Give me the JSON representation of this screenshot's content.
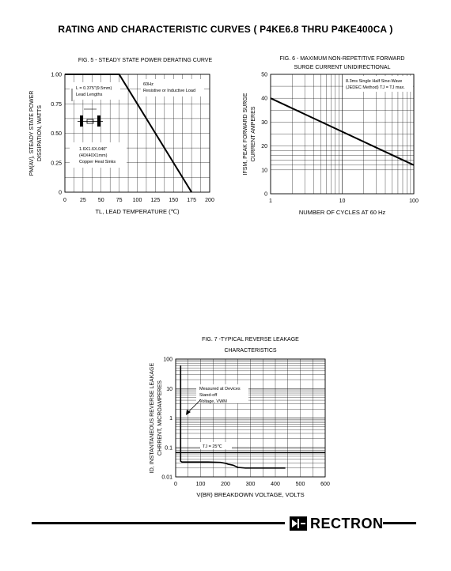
{
  "page_title": "RATING AND CHARACTERISTIC CURVES ( P4KE6.8 THRU P4KE400CA )",
  "logo_text": "RECTRON",
  "chart_data": [
    {
      "type": "line",
      "title": "FIG. 5 - STEADY STATE POWER DERATING CURVE",
      "xlabel": "TL, LEAD TEMPERATURE (℃)",
      "ylabel": [
        "PM(AV), STEADY STATE POWER",
        "DISSIPATION, WATTS"
      ],
      "xlim": [
        0,
        200
      ],
      "ylim": [
        0,
        1.0
      ],
      "x_ticks": [
        0,
        25,
        50,
        75,
        100,
        125,
        150,
        175,
        200
      ],
      "y_ticks": [
        0,
        0.25,
        0.5,
        0.75,
        1.0
      ],
      "y_tick_labels": [
        "0",
        "0.25",
        "0.50",
        "0.75",
        "1.00"
      ],
      "grid": true,
      "series": [
        {
          "x": [
            0,
            75,
            175
          ],
          "y": [
            1.0,
            1.0,
            0
          ]
        }
      ],
      "annotations": [
        [
          "L = 0.375\"(9.5mm)",
          "Lead Lengths"
        ],
        [
          "60Hz",
          "Resistive or Inductive Load"
        ],
        [
          "1.6X1.6X.040\"",
          "(40X40X1mm)",
          "Copper Heat Sinks"
        ]
      ]
    },
    {
      "type": "line",
      "title": [
        "FIG. 6 - MAXIMUM NON-REPETITIVE FORWARD",
        "SURGE CURRENT UNIDIRECTIONAL"
      ],
      "xlabel": "NUMBER OF CYCLES AT 60 Hz",
      "ylabel": [
        "IFSM, PEAK FORWARD SURGE",
        "CURRENT AMPERES"
      ],
      "x_scale": "log",
      "xlim": [
        1,
        100
      ],
      "ylim": [
        0,
        50
      ],
      "x_ticks": [
        1,
        10,
        100
      ],
      "y_ticks": [
        0,
        10,
        20,
        30,
        40,
        50
      ],
      "grid": true,
      "series": [
        {
          "x": [
            1,
            10,
            100
          ],
          "y": [
            40,
            26,
            12
          ]
        }
      ],
      "annotations": [
        [
          "8.3ms Single Half Sine-Wave",
          "(JEDEC Method) TJ = TJ max."
        ]
      ]
    },
    {
      "type": "line",
      "title": [
        "FIG. 7 -TYPICAL REVERSE LEAKAGE",
        "CHARACTERISTICS"
      ],
      "xlabel": "V(BR) BREAKDOWN VOLTAGE, VOLTS",
      "ylabel": [
        "ID, INSTANTANEOUS REVERSE LEAKAGE",
        "CHRRENT, MICROAMPERES"
      ],
      "y_scale": "log",
      "xlim": [
        0,
        600
      ],
      "ylim": [
        0.01,
        100
      ],
      "x_ticks": [
        0,
        100,
        200,
        300,
        400,
        500,
        600
      ],
      "y_ticks": [
        0.01,
        0.1,
        1,
        10,
        100
      ],
      "y_tick_labels": [
        "0.01",
        "0.1",
        "1",
        "10",
        "100"
      ],
      "grid": true,
      "series": [
        {
          "x": [
            20,
            20,
            25,
            130,
            180,
            200,
            210,
            230,
            250,
            280,
            440
          ],
          "y": [
            60,
            0.034,
            0.032,
            0.032,
            0.031,
            0.029,
            0.027,
            0.025,
            0.021,
            0.02,
            0.02
          ]
        }
      ],
      "annotations": [
        [
          "Measured at Devices",
          "Stand-off",
          "Voltage, VWM"
        ],
        [
          "TJ = 25℃"
        ]
      ]
    }
  ]
}
